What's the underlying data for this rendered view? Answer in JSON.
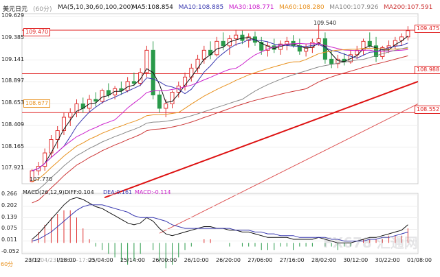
{
  "header": {
    "symbol": "美元日元",
    "period": "(60分)",
    "ma_label": "MA(5,10,30,60,100,200)",
    "ma_values": [
      {
        "name": "MA5",
        "value": "108.854",
        "color": "#111111"
      },
      {
        "name": "MA10",
        "value": "108.885",
        "color": "#3a3ab0"
      },
      {
        "name": "MA30",
        "value": "108.771",
        "color": "#cc22cc"
      },
      {
        "name": "MA60",
        "value": "108.280",
        "color": "#e8901c"
      },
      {
        "name": "MA100",
        "value": "107.926",
        "color": "#888888"
      },
      {
        "name": "MA200",
        "value": "107.591",
        "color": "#cc3333"
      }
    ]
  },
  "macd_header": {
    "label": "MACD(26,12,9)",
    "diff": "DIFF:0.104",
    "dea": "DEA:0.161",
    "macd": "MACD:-0.114"
  },
  "price_tags": {
    "h1_left": "109.470",
    "h1_right": "109.475",
    "h2_right": "108.988",
    "h3_left": "108.677",
    "h3_right": "108.552",
    "high_note": "109.540",
    "low_note": "107.770"
  },
  "cursor_label": "2018/04/23 16:00~17:00",
  "period_label": "60分",
  "watermark": "FX678 汇通网",
  "colors": {
    "up": "#e03030",
    "down": "#2a9a4a",
    "grid": "#eeeeee",
    "hline": "#e02020",
    "trend": "#dd1111"
  },
  "chart_data": [
    {
      "type": "candlestick",
      "title": "美元日元 (60分)",
      "y_ticks": [
        "109.629",
        "109.385",
        "109.141",
        "108.897",
        "108.653",
        "108.409",
        "108.165",
        "107.921"
      ],
      "ylim": [
        107.77,
        109.629
      ],
      "x_ticks": [
        "23/12",
        "I/18:00",
        "25/04:00",
        "25/14:00",
        "26/00:00",
        "26/10:00",
        "26/20:00",
        "27/06:00",
        "27/16:00",
        "28/02:00",
        "30/12:00",
        "30/22:00",
        "01/08:00"
      ],
      "ohlc": [
        [
          107.78,
          107.92,
          107.77,
          107.9
        ],
        [
          107.9,
          108.0,
          107.85,
          107.95
        ],
        [
          107.95,
          108.15,
          107.9,
          108.1
        ],
        [
          108.1,
          108.3,
          108.05,
          108.25
        ],
        [
          108.25,
          108.4,
          108.15,
          108.35
        ],
        [
          108.35,
          108.55,
          108.3,
          108.5
        ],
        [
          108.5,
          108.6,
          108.4,
          108.55
        ],
        [
          108.55,
          108.7,
          108.5,
          108.65
        ],
        [
          108.65,
          108.72,
          108.55,
          108.6
        ],
        [
          108.6,
          108.75,
          108.55,
          108.7
        ],
        [
          108.7,
          108.78,
          108.62,
          108.68
        ],
        [
          108.68,
          108.82,
          108.65,
          108.8
        ],
        [
          108.8,
          108.88,
          108.72,
          108.75
        ],
        [
          108.75,
          108.85,
          108.7,
          108.82
        ],
        [
          108.82,
          108.9,
          108.75,
          108.8
        ],
        [
          108.8,
          108.95,
          108.78,
          108.9
        ],
        [
          108.9,
          109.0,
          108.85,
          108.88
        ],
        [
          108.88,
          109.05,
          108.85,
          109.0
        ],
        [
          109.0,
          109.3,
          108.95,
          109.25
        ],
        [
          109.25,
          109.35,
          108.7,
          108.75
        ],
        [
          108.75,
          108.8,
          108.55,
          108.6
        ],
        [
          108.6,
          108.7,
          108.5,
          108.65
        ],
        [
          108.65,
          108.8,
          108.6,
          108.78
        ],
        [
          108.78,
          108.9,
          108.72,
          108.85
        ],
        [
          108.85,
          109.0,
          108.8,
          108.95
        ],
        [
          108.95,
          109.1,
          108.9,
          109.05
        ],
        [
          109.05,
          109.2,
          109.0,
          109.15
        ],
        [
          109.15,
          109.3,
          109.1,
          109.25
        ],
        [
          109.25,
          109.35,
          109.15,
          109.2
        ],
        [
          109.2,
          109.4,
          109.18,
          109.35
        ],
        [
          109.35,
          109.45,
          109.25,
          109.3
        ],
        [
          109.3,
          109.42,
          109.2,
          109.38
        ],
        [
          109.38,
          109.48,
          109.3,
          109.42
        ],
        [
          109.42,
          109.47,
          109.32,
          109.36
        ],
        [
          109.36,
          109.44,
          109.28,
          109.4
        ],
        [
          109.4,
          109.46,
          109.3,
          109.34
        ],
        [
          109.34,
          109.4,
          109.2,
          109.25
        ],
        [
          109.25,
          109.35,
          109.18,
          109.3
        ],
        [
          109.3,
          109.38,
          109.22,
          109.26
        ],
        [
          109.26,
          109.36,
          109.2,
          109.32
        ],
        [
          109.32,
          109.4,
          109.25,
          109.35
        ],
        [
          109.35,
          109.42,
          109.28,
          109.3
        ],
        [
          109.3,
          109.38,
          109.2,
          109.24
        ],
        [
          109.24,
          109.32,
          109.18,
          109.28
        ],
        [
          109.28,
          109.38,
          109.22,
          109.34
        ],
        [
          109.34,
          109.54,
          109.3,
          109.38
        ],
        [
          109.38,
          109.45,
          109.1,
          109.15
        ],
        [
          109.15,
          109.25,
          109.05,
          109.1
        ],
        [
          109.1,
          109.2,
          109.05,
          109.15
        ],
        [
          109.15,
          109.22,
          109.08,
          109.12
        ],
        [
          109.12,
          109.25,
          109.1,
          109.2
        ],
        [
          109.2,
          109.3,
          109.15,
          109.25
        ],
        [
          109.25,
          109.38,
          109.2,
          109.35
        ],
        [
          109.35,
          109.45,
          109.28,
          109.3
        ],
        [
          109.3,
          109.4,
          109.12,
          109.18
        ],
        [
          109.18,
          109.3,
          109.15,
          109.28
        ],
        [
          109.28,
          109.36,
          109.22,
          109.3
        ],
        [
          109.3,
          109.4,
          109.26,
          109.36
        ],
        [
          109.36,
          109.44,
          109.3,
          109.4
        ],
        [
          109.4,
          109.52,
          109.36,
          109.47
        ]
      ]
    },
    {
      "type": "macd",
      "title": "MACD(26,12,9)",
      "y_ticks": [
        "0.266",
        "0.202",
        "0.139",
        "0.075",
        "0.011",
        "-0.052"
      ],
      "ylim": [
        -0.052,
        0.266
      ],
      "diff": [
        0.02,
        0.05,
        0.09,
        0.13,
        0.17,
        0.21,
        0.24,
        0.25,
        0.24,
        0.22,
        0.2,
        0.19,
        0.17,
        0.15,
        0.13,
        0.11,
        0.1,
        0.11,
        0.14,
        0.12,
        0.08,
        0.05,
        0.04,
        0.05,
        0.06,
        0.07,
        0.08,
        0.09,
        0.09,
        0.08,
        0.08,
        0.07,
        0.07,
        0.06,
        0.06,
        0.05,
        0.04,
        0.03,
        0.03,
        0.03,
        0.03,
        0.02,
        0.02,
        0.02,
        0.02,
        0.03,
        0.02,
        0.01,
        0.0,
        0.0,
        0.0,
        0.01,
        0.02,
        0.03,
        0.03,
        0.04,
        0.05,
        0.06,
        0.07,
        0.1
      ],
      "dea": [
        0.01,
        0.02,
        0.04,
        0.06,
        0.09,
        0.12,
        0.15,
        0.18,
        0.2,
        0.21,
        0.21,
        0.21,
        0.2,
        0.19,
        0.18,
        0.17,
        0.15,
        0.14,
        0.14,
        0.14,
        0.13,
        0.12,
        0.1,
        0.09,
        0.08,
        0.08,
        0.08,
        0.08,
        0.08,
        0.08,
        0.08,
        0.08,
        0.07,
        0.07,
        0.07,
        0.06,
        0.06,
        0.05,
        0.05,
        0.04,
        0.04,
        0.04,
        0.03,
        0.03,
        0.03,
        0.03,
        0.03,
        0.02,
        0.02,
        0.01,
        0.01,
        0.01,
        0.01,
        0.02,
        0.02,
        0.03,
        0.03,
        0.04,
        0.05,
        0.06
      ],
      "hist": [
        0.02,
        0.06,
        0.1,
        0.14,
        0.16,
        0.18,
        0.18,
        0.14,
        0.08,
        0.02,
        -0.02,
        -0.04,
        -0.06,
        -0.08,
        -0.1,
        -0.12,
        -0.1,
        -0.06,
        0.0,
        -0.04,
        -0.1,
        -0.14,
        -0.12,
        -0.08,
        -0.04,
        -0.02,
        0.0,
        0.02,
        0.02,
        0.0,
        0.0,
        -0.02,
        0.0,
        -0.02,
        -0.02,
        -0.02,
        -0.04,
        -0.04,
        -0.04,
        -0.02,
        -0.02,
        -0.04,
        -0.02,
        -0.02,
        -0.02,
        0.0,
        -0.02,
        -0.02,
        -0.04,
        -0.02,
        -0.02,
        0.0,
        0.02,
        0.02,
        0.02,
        0.02,
        0.04,
        0.04,
        0.04,
        0.08
      ]
    }
  ]
}
